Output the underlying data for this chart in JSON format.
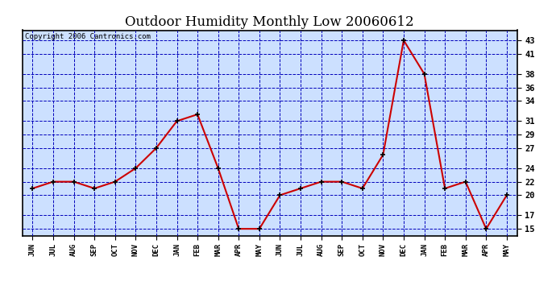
{
  "title": "Outdoor Humidity Monthly Low 20060612",
  "copyright": "Copyright 2006 Cantronics.com",
  "x_labels": [
    "JUN",
    "JUL",
    "AUG",
    "SEP",
    "OCT",
    "NOV",
    "DEC",
    "JAN",
    "FEB",
    "MAR",
    "APR",
    "MAY",
    "JUN",
    "JUL",
    "AUG",
    "SEP",
    "OCT",
    "NOV",
    "DEC",
    "JAN",
    "FEB",
    "MAR",
    "APR",
    "MAY"
  ],
  "y_values": [
    21,
    22,
    22,
    21,
    22,
    24,
    27,
    31,
    32,
    24,
    15,
    15,
    20,
    21,
    22,
    22,
    21,
    26,
    43,
    38,
    21,
    22,
    15,
    20
  ],
  "ylim": [
    14.0,
    44.5
  ],
  "yticks": [
    15,
    17,
    20,
    22,
    24,
    27,
    29,
    31,
    34,
    36,
    38,
    41,
    43
  ],
  "line_color": "#cc0000",
  "marker_color": "#000000",
  "grid_color": "#0000bb",
  "bg_color": "#ffffff",
  "plot_bg_color": "#cce0ff",
  "title_fontsize": 12,
  "copyright_fontsize": 6.5
}
